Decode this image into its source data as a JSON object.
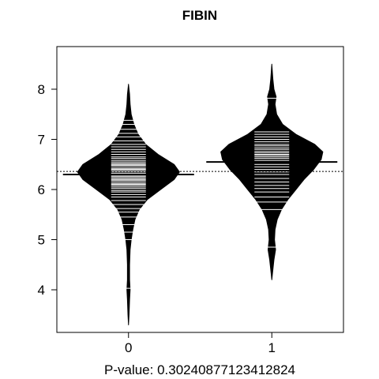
{
  "chart_data": {
    "type": "beanplot",
    "title": "FIBIN",
    "xlabel": "P-value: 0.30240877123412824",
    "ylabel": "",
    "ylim": [
      3.15,
      8.85
    ],
    "yticks": [
      4,
      5,
      6,
      7,
      8
    ],
    "categories": [
      "0",
      "1"
    ],
    "overall_mean": 6.36,
    "grid": false,
    "beans": [
      {
        "label": "0",
        "mean": 6.3,
        "density": [
          [
            3.3,
            0.0
          ],
          [
            3.5,
            0.01
          ],
          [
            3.8,
            0.02
          ],
          [
            4.0,
            0.03
          ],
          [
            4.2,
            0.02
          ],
          [
            4.5,
            0.02
          ],
          [
            4.8,
            0.03
          ],
          [
            5.0,
            0.05
          ],
          [
            5.2,
            0.08
          ],
          [
            5.4,
            0.12
          ],
          [
            5.6,
            0.2
          ],
          [
            5.8,
            0.35
          ],
          [
            6.0,
            0.6
          ],
          [
            6.2,
            0.85
          ],
          [
            6.35,
            0.95
          ],
          [
            6.5,
            0.85
          ],
          [
            6.7,
            0.55
          ],
          [
            6.9,
            0.32
          ],
          [
            7.1,
            0.18
          ],
          [
            7.3,
            0.1
          ],
          [
            7.5,
            0.05
          ],
          [
            7.7,
            0.03
          ],
          [
            7.9,
            0.02
          ],
          [
            8.1,
            0.0
          ]
        ],
        "points": [
          4.03,
          5.0,
          5.15,
          5.3,
          5.45,
          5.55,
          5.62,
          5.7,
          5.78,
          5.85,
          5.9,
          5.95,
          5.98,
          6.02,
          6.05,
          6.08,
          6.1,
          6.12,
          6.15,
          6.18,
          6.2,
          6.22,
          6.25,
          6.27,
          6.3,
          6.32,
          6.35,
          6.38,
          6.4,
          6.42,
          6.45,
          6.48,
          6.5,
          6.52,
          6.55,
          6.58,
          6.62,
          6.65,
          6.7,
          6.75,
          6.8,
          6.85,
          6.9,
          6.97,
          7.05,
          7.12,
          7.2,
          7.3,
          7.38
        ]
      },
      {
        "label": "1",
        "mean": 6.55,
        "density": [
          [
            4.2,
            0.0
          ],
          [
            4.4,
            0.02
          ],
          [
            4.6,
            0.04
          ],
          [
            4.8,
            0.07
          ],
          [
            5.0,
            0.05
          ],
          [
            5.2,
            0.06
          ],
          [
            5.4,
            0.1
          ],
          [
            5.6,
            0.18
          ],
          [
            5.8,
            0.3
          ],
          [
            6.0,
            0.45
          ],
          [
            6.2,
            0.6
          ],
          [
            6.4,
            0.78
          ],
          [
            6.6,
            0.92
          ],
          [
            6.75,
            0.95
          ],
          [
            6.9,
            0.8
          ],
          [
            7.1,
            0.45
          ],
          [
            7.3,
            0.2
          ],
          [
            7.5,
            0.09
          ],
          [
            7.7,
            0.06
          ],
          [
            7.85,
            0.08
          ],
          [
            8.0,
            0.04
          ],
          [
            8.2,
            0.02
          ],
          [
            8.5,
            0.0
          ]
        ],
        "points": [
          4.85,
          5.6,
          5.75,
          5.85,
          5.95,
          6.02,
          6.08,
          6.15,
          6.22,
          6.3,
          6.35,
          6.4,
          6.45,
          6.5,
          6.55,
          6.58,
          6.62,
          6.65,
          6.68,
          6.7,
          6.73,
          6.76,
          6.8,
          6.83,
          6.87,
          6.9,
          6.95,
          7.0,
          7.05,
          7.1,
          7.15,
          7.82
        ]
      }
    ]
  }
}
